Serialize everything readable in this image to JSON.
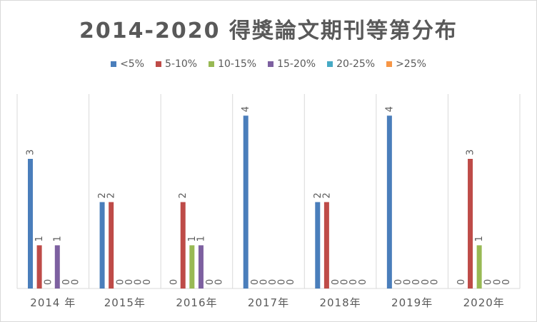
{
  "chart_data": {
    "type": "bar",
    "title": "2014-2020 得獎論文期刊等第分布",
    "categories": [
      "2014 年",
      "2015年",
      "2016年",
      "2017年",
      "2018年",
      "2019年",
      "2020年"
    ],
    "series": [
      {
        "name": "<5%",
        "color": "#4a7ebb",
        "values": [
          3,
          2,
          0,
          4,
          2,
          4,
          0
        ]
      },
      {
        "name": "5-10%",
        "color": "#be4b48",
        "values": [
          1,
          2,
          2,
          0,
          2,
          0,
          3
        ]
      },
      {
        "name": "10-15%",
        "color": "#98b954",
        "values": [
          0,
          0,
          1,
          0,
          0,
          0,
          1
        ]
      },
      {
        "name": "15-20%",
        "color": "#7d60a0",
        "values": [
          1,
          0,
          1,
          0,
          0,
          0,
          0
        ]
      },
      {
        "name": "20-25%",
        "color": "#46aac5",
        "values": [
          0,
          0,
          0,
          0,
          0,
          0,
          0
        ]
      },
      {
        "name": ">25%",
        "color": "#f79646",
        "values": [
          0,
          0,
          0,
          0,
          0,
          0,
          0
        ]
      }
    ],
    "ylim": [
      0,
      4.5
    ],
    "grid": false,
    "legend_position": "top"
  }
}
